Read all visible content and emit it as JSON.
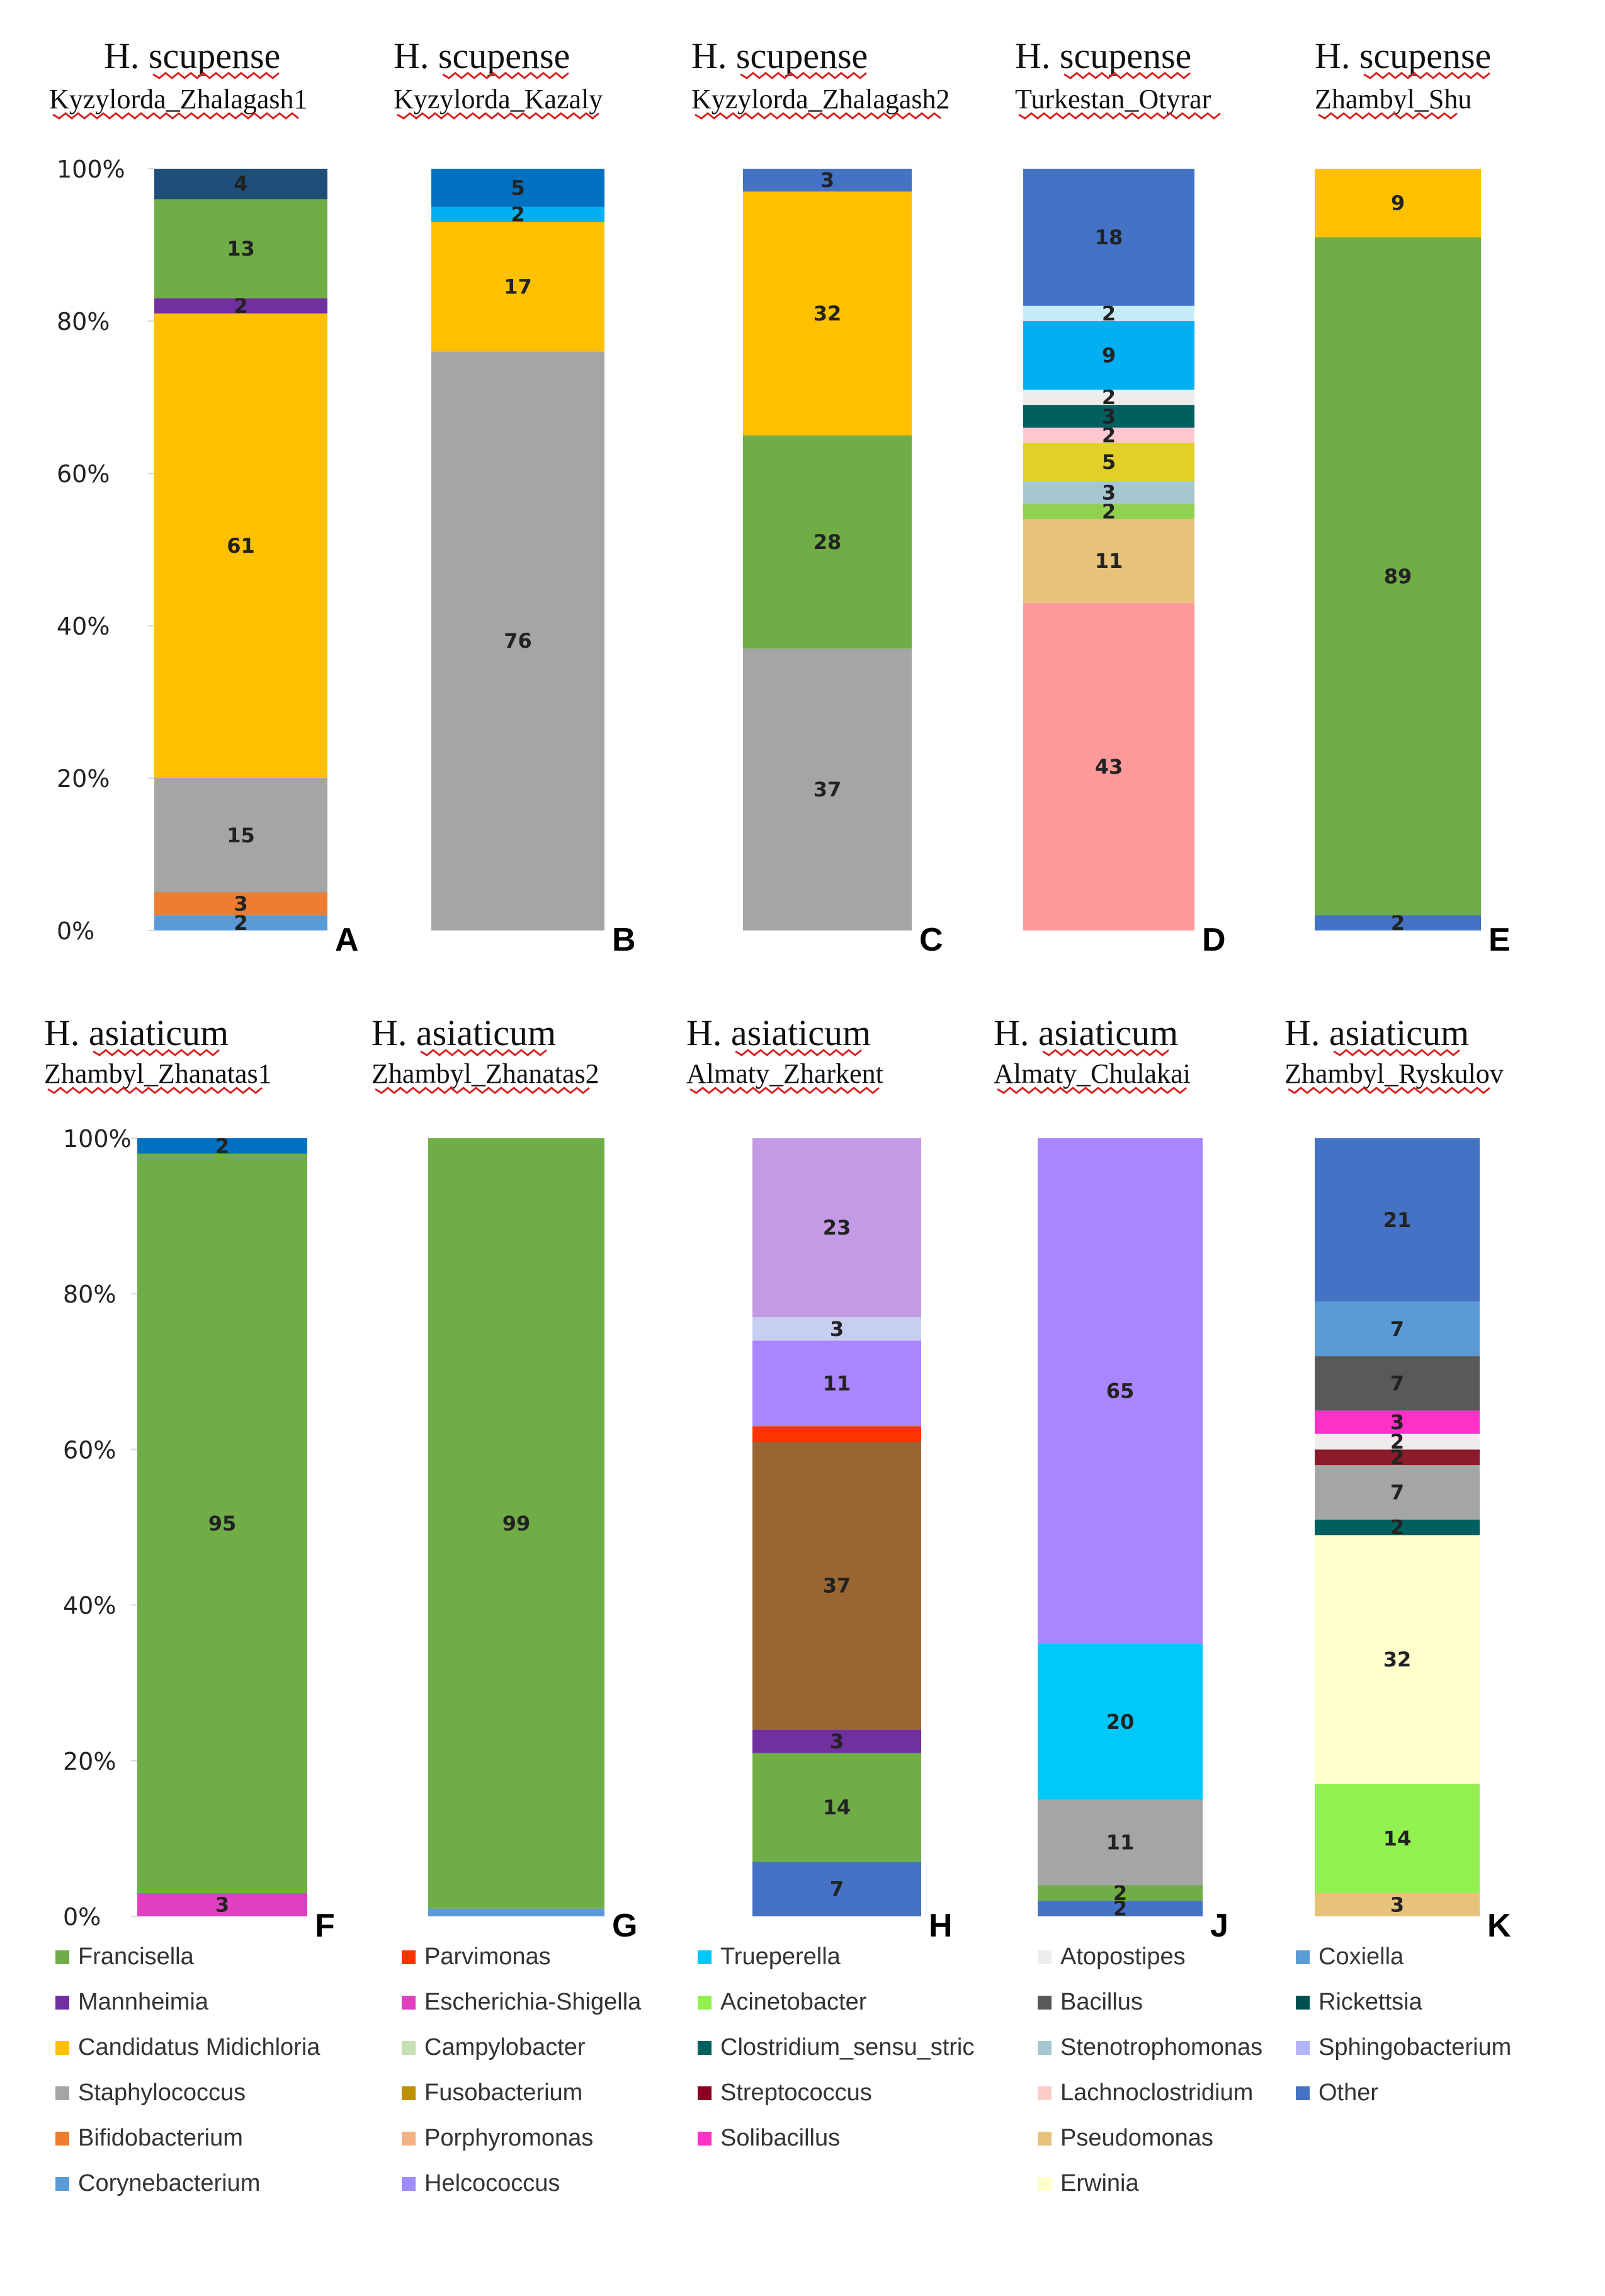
{
  "chart_data": {
    "type": "bar",
    "stacked": true,
    "normalized": true,
    "y_ticks": [
      "0%",
      "20%",
      "40%",
      "60%",
      "80%",
      "100%"
    ],
    "colors": {
      "Francisella": "#70ad47",
      "Mannheimia": "#7030a0",
      "Candidatus Midichloria": "#ffc000",
      "Staphylococcus": "#a5a5a5",
      "Bifidobacterium": "#ed7d31",
      "Corynebacterium": "#5b9bd5",
      "Parvimonas": "#ff3300",
      "Escherichia-Shigella": "#e040c0",
      "Campylobacter": "#c5e0b4",
      "Fusobacterium": "#bf9000",
      "Porphyromonas": "#f4b183",
      "Helcococcus": "#a08cff",
      "Trueperella": "#00c8f8",
      "Acinetobacter": "#92f050",
      "Clostridium_sensu_stricto": "#006060",
      "Streptococcus": "#8b0020",
      "Solibacillus": "#ff30c8",
      "Atopostipes": "#ededed",
      "Bacillus": "#595959",
      "Stenotrophomonas": "#a6c6d0",
      "Lachnoclostridium": "#ffcccc",
      "Pseudomonas": "#e6c27a",
      "Erwinia": "#ffffcc",
      "Coxiella": "#5b9bd5",
      "Rickettsia": "#00504f",
      "Sphingobacterium": "#b4b4f8",
      "Other": "#4472c4",
      "Dark Blue": "#1f4e79",
      "Blue": "#0070c0",
      "Sky": "#00b0f0",
      "Light Sky": "#c6ecf8",
      "Teal": "#00605f",
      "Pink": "#ffc7ce",
      "Olive Yellow": "#e0d028",
      "Light Green": "#92d050",
      "Salmon": "#ff9999",
      "Lavender": "#c39be4",
      "Pale Lavender": "#c6cfee",
      "Purple": "#a985ff",
      "Brown": "#996633",
      "Deep Purple": "#7030a0",
      "Crimson": "#8b1a2b"
    },
    "panels": [
      {
        "letter": "A",
        "species": "H. scupense",
        "site": "Kyzylorda_Zhalagash1",
        "show_axis": true,
        "segments": [
          {
            "taxon": "Corynebacterium",
            "value": 2,
            "label": "2"
          },
          {
            "taxon": "Bifidobacterium",
            "value": 3,
            "label": "3"
          },
          {
            "taxon": "Staphylococcus",
            "value": 15,
            "label": "15"
          },
          {
            "taxon": "Candidatus Midichloria",
            "value": 61,
            "label": "61"
          },
          {
            "taxon": "Mannheimia",
            "value": 2,
            "label": "2"
          },
          {
            "taxon": "Francisella",
            "value": 13,
            "label": "13"
          },
          {
            "taxon": "Dark Blue",
            "value": 4,
            "label": "4"
          }
        ]
      },
      {
        "letter": "B",
        "species": "H. scupense",
        "site": "Kyzylorda_Kazaly",
        "show_axis": false,
        "segments": [
          {
            "taxon": "Staphylococcus",
            "value": 76,
            "label": "76"
          },
          {
            "taxon": "Candidatus Midichloria",
            "value": 17,
            "label": "17"
          },
          {
            "taxon": "Sky",
            "value": 2,
            "label": "2"
          },
          {
            "taxon": "Blue",
            "value": 5,
            "label": "5"
          }
        ]
      },
      {
        "letter": "C",
        "species": "H. scupense",
        "site": "Kyzylorda_Zhalagash2",
        "show_axis": false,
        "segments": [
          {
            "taxon": "Staphylococcus",
            "value": 37,
            "label": "37"
          },
          {
            "taxon": "Francisella",
            "value": 28,
            "label": "28"
          },
          {
            "taxon": "Candidatus Midichloria",
            "value": 32,
            "label": "32"
          },
          {
            "taxon": "Other",
            "value": 3,
            "label": "3"
          }
        ]
      },
      {
        "letter": "D",
        "species": "H. scupense",
        "site": "Turkestan_Otyrar",
        "show_axis": false,
        "segments": [
          {
            "taxon": "Salmon",
            "value": 43,
            "label": "43"
          },
          {
            "taxon": "Pseudomonas",
            "value": 11,
            "label": "11"
          },
          {
            "taxon": "Light Green",
            "value": 2,
            "label": "2"
          },
          {
            "taxon": "Stenotrophomonas",
            "value": 3,
            "label": "3"
          },
          {
            "taxon": "Olive Yellow",
            "value": 5,
            "label": "5"
          },
          {
            "taxon": "Pink",
            "value": 2,
            "label": "2"
          },
          {
            "taxon": "Teal",
            "value": 3,
            "label": "3"
          },
          {
            "taxon": "Atopostipes",
            "value": 2,
            "label": "2"
          },
          {
            "taxon": "Sky",
            "value": 9,
            "label": "9"
          },
          {
            "taxon": "Light Sky",
            "value": 2,
            "label": "2"
          },
          {
            "taxon": "Other",
            "value": 18,
            "label": "18"
          }
        ]
      },
      {
        "letter": "E",
        "species": "H. scupense",
        "site": "Zhambyl_Shu",
        "show_axis": false,
        "segments": [
          {
            "taxon": "Other",
            "value": 2,
            "label": "2"
          },
          {
            "taxon": "Francisella",
            "value": 89,
            "label": "89"
          },
          {
            "taxon": "Candidatus Midichloria",
            "value": 9,
            "label": "9"
          }
        ]
      },
      {
        "letter": "F",
        "species": "H. asiaticum",
        "site": "Zhambyl_Zhanatas1",
        "show_axis": true,
        "segments": [
          {
            "taxon": "Escherichia-Shigella",
            "value": 3,
            "label": "3"
          },
          {
            "taxon": "Francisella",
            "value": 95,
            "label": "95"
          },
          {
            "taxon": "Blue",
            "value": 2,
            "label": "2"
          }
        ]
      },
      {
        "letter": "G",
        "species": "H. asiaticum",
        "site": "Zhambyl_Zhanatas2",
        "show_axis": false,
        "segments": [
          {
            "taxon": "Corynebacterium",
            "value": 1,
            "label": ""
          },
          {
            "taxon": "Francisella",
            "value": 99,
            "label": "99"
          }
        ]
      },
      {
        "letter": "H",
        "species": "H. asiaticum",
        "site": "Almaty_Zharkent",
        "show_axis": false,
        "segments": [
          {
            "taxon": "Other",
            "value": 7,
            "label": "7"
          },
          {
            "taxon": "Francisella",
            "value": 14,
            "label": "14"
          },
          {
            "taxon": "Deep Purple",
            "value": 3,
            "label": "3"
          },
          {
            "taxon": "Brown",
            "value": 37,
            "label": "37"
          },
          {
            "taxon": "Parvimonas",
            "value": 2,
            "label": ""
          },
          {
            "taxon": "Purple",
            "value": 11,
            "label": "11"
          },
          {
            "taxon": "Pale Lavender",
            "value": 3,
            "label": "3"
          },
          {
            "taxon": "Lavender",
            "value": 23,
            "label": "23"
          }
        ]
      },
      {
        "letter": "J",
        "species": "H. asiaticum",
        "site": "Almaty_Chulakai",
        "show_axis": false,
        "segments": [
          {
            "taxon": "Other",
            "value": 2,
            "label": "2"
          },
          {
            "taxon": "Francisella",
            "value": 2,
            "label": "2"
          },
          {
            "taxon": "Staphylococcus",
            "value": 11,
            "label": "11"
          },
          {
            "taxon": "Trueperella",
            "value": 20,
            "label": "20"
          },
          {
            "taxon": "Purple",
            "value": 65,
            "label": "65"
          }
        ]
      },
      {
        "letter": "K",
        "species": "H. asiaticum",
        "site": "Zhambyl_Ryskulov",
        "show_axis": false,
        "segments": [
          {
            "taxon": "Pseudomonas",
            "value": 3,
            "label": "3"
          },
          {
            "taxon": "Acinetobacter",
            "value": 14,
            "label": "14"
          },
          {
            "taxon": "Erwinia",
            "value": 32,
            "label": "32"
          },
          {
            "taxon": "Teal",
            "value": 2,
            "label": "2"
          },
          {
            "taxon": "Staphylococcus",
            "value": 7,
            "label": "7"
          },
          {
            "taxon": "Crimson",
            "value": 2,
            "label": "2"
          },
          {
            "taxon": "Atopostipes",
            "value": 2,
            "label": "2"
          },
          {
            "taxon": "Solibacillus",
            "value": 3,
            "label": "3"
          },
          {
            "taxon": "Bacillus",
            "value": 7,
            "label": "7"
          },
          {
            "taxon": "Coxiella",
            "value": 7,
            "label": "7"
          },
          {
            "taxon": "Other",
            "value": 21,
            "label": "21"
          }
        ]
      }
    ],
    "legend": [
      [
        "Francisella",
        "Mannheimia",
        "Candidatus Midichloria",
        "Staphylococcus",
        "Bifidobacterium",
        "Corynebacterium"
      ],
      [
        "Parvimonas",
        "Escherichia-Shigella",
        "Campylobacter",
        "Fusobacterium",
        "Porphyromonas",
        "Helcococcus"
      ],
      [
        "Trueperella",
        "Acinetobacter",
        "Clostridium_sensu_stric",
        "Streptococcus",
        "Solibacillus"
      ],
      [
        "Atopostipes",
        "Bacillus",
        "Stenotrophomonas",
        "Lachnoclostridium",
        "Pseudomonas",
        "Erwinia"
      ],
      [
        "Coxiella",
        "Rickettsia",
        "Sphingobacterium",
        "Other"
      ]
    ],
    "legend_colors": {
      "Clostridium_sensu_stric": "#006060"
    }
  }
}
